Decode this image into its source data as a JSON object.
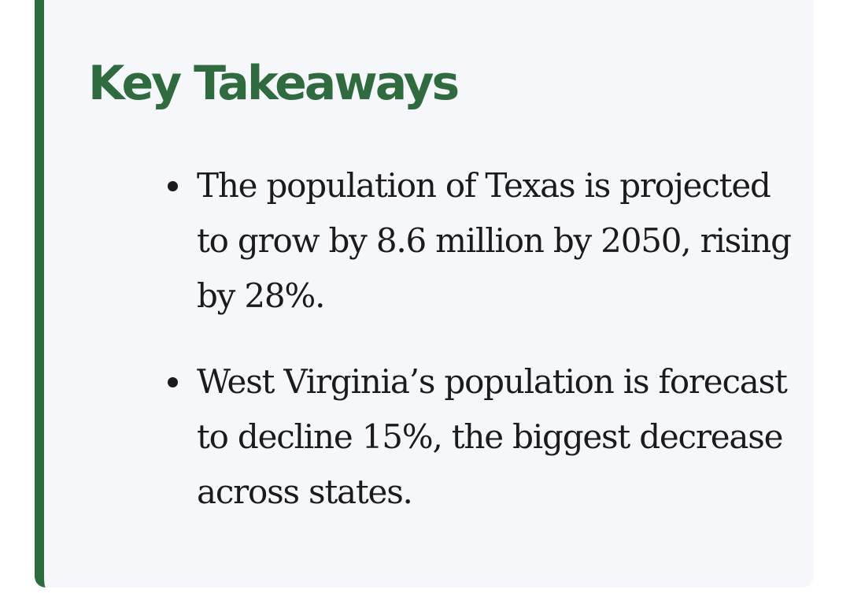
{
  "takeaways": {
    "title": "Key Takeaways",
    "items": [
      {
        "text": "The population of Texas is projected to grow by 8.6 million by 2050, rising by 28%."
      },
      {
        "text": "West Virginia’s population is forecast to decline 15%, the biggest decrease across states."
      }
    ]
  },
  "colors": {
    "accent": "#2f6b3e",
    "card_background": "#f6f7fa",
    "text": "#1b1b1b"
  }
}
